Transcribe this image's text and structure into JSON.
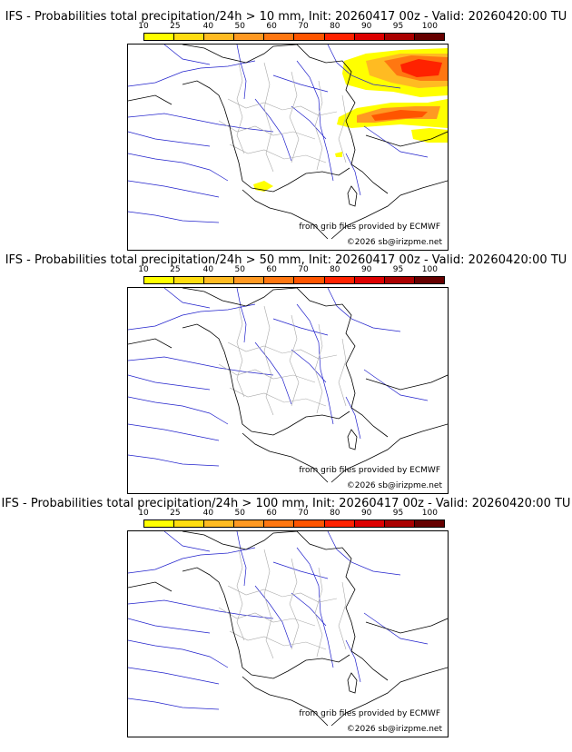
{
  "colorbar": {
    "ticks": [
      "10",
      "25",
      "40",
      "50",
      "60",
      "70",
      "80",
      "90",
      "95",
      "100"
    ],
    "colors": [
      "#ffff00",
      "#ffdd10",
      "#ffbb22",
      "#ff9922",
      "#ff7711",
      "#ff5500",
      "#ff2200",
      "#dd0000",
      "#aa0000",
      "#660000"
    ]
  },
  "panels": [
    {
      "title": "IFS - Probabilities total precipitation/24h > 10 mm, Init: 20260417 00z - Valid: 20260420:00 TU",
      "threshold": "10",
      "source": "from grib files provided by ECMWF",
      "copyright": "©2026 sb@irizpme.net"
    },
    {
      "title": "IFS - Probabilities total precipitation/24h > 50 mm, Init: 20260417 00z - Valid: 20260420:00 TU",
      "threshold": "50",
      "source": "from grib files provided by ECMWF",
      "copyright": "©2026 sb@irizpme.net"
    },
    {
      "title": "IFS - Probabilities total precipitation/24h > 100 mm, Init: 20260417 00z - Valid: 20260420:00 TU",
      "threshold": "100",
      "source": "from grib files provided by ECMWF",
      "copyright": "©2026 sb@irizpme.net"
    }
  ],
  "map_style": {
    "coast": "#000000",
    "border": "#000000",
    "department": "#aaaaaa",
    "river": "#2222cc"
  }
}
